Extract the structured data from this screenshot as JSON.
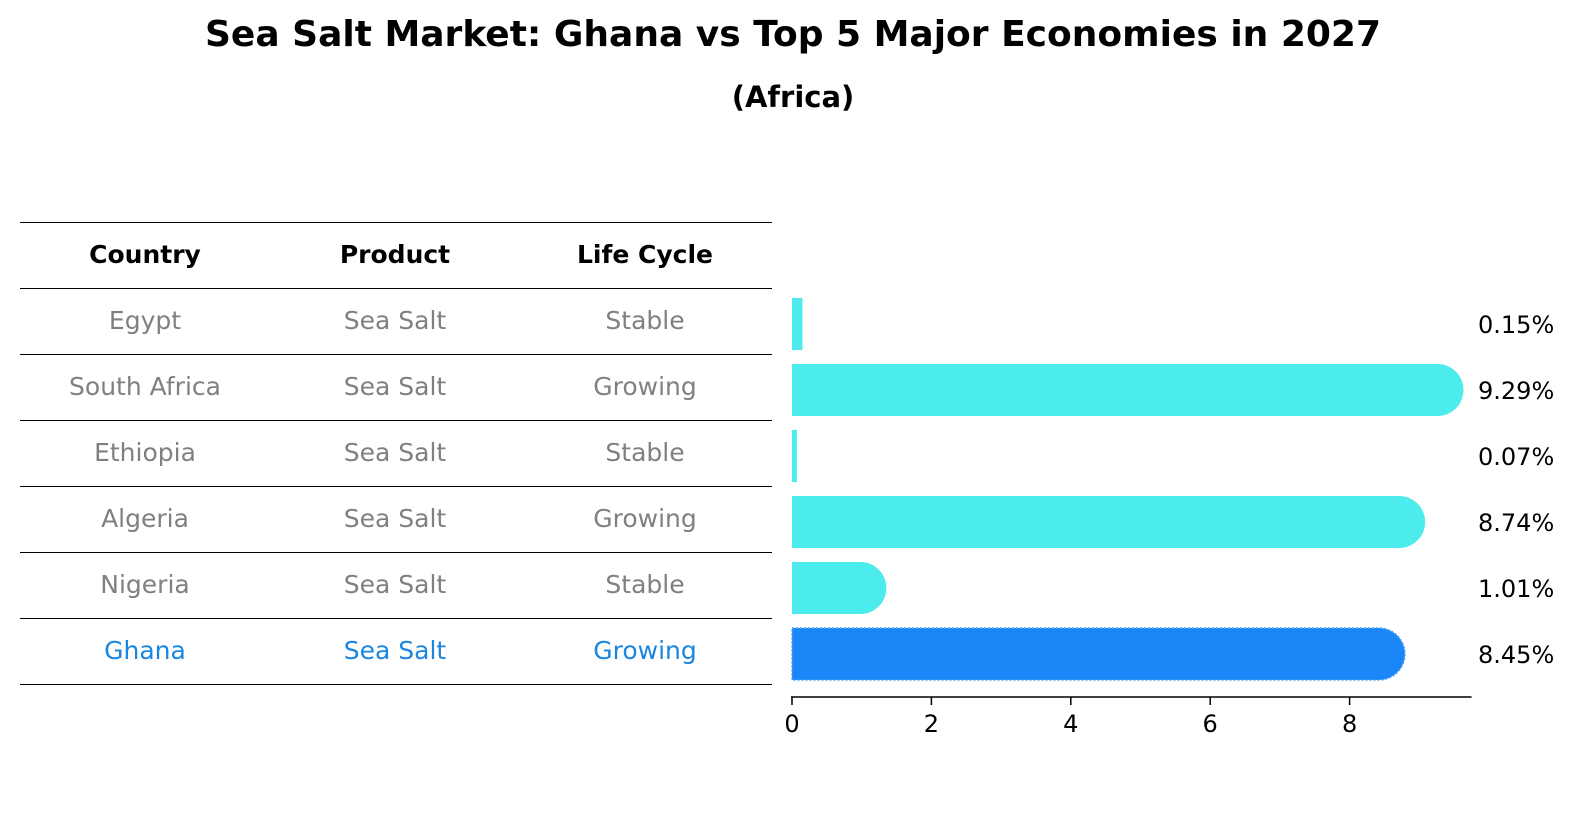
{
  "title": "Sea Salt Market: Ghana vs Top 5 Major Economies in 2027",
  "subtitle": "(Africa)",
  "table": {
    "headers": [
      "Country",
      "Product",
      "Life Cycle"
    ],
    "rows": [
      [
        "Egypt",
        "Sea Salt",
        "Stable"
      ],
      [
        "South Africa",
        "Sea Salt",
        "Growing"
      ],
      [
        "Ethiopia",
        "Sea Salt",
        "Stable"
      ],
      [
        "Algeria",
        "Sea Salt",
        "Growing"
      ],
      [
        "Nigeria",
        "Sea Salt",
        "Stable"
      ],
      [
        "Ghana",
        "Sea Salt",
        "Growing"
      ]
    ],
    "highlight_row": 5
  },
  "colors": {
    "bar": "#4beceb",
    "highlight_bar": "#1b86f7",
    "highlight_text": "#1b86e0",
    "row_text": "#808080"
  },
  "chart_data": {
    "type": "bar",
    "orientation": "horizontal",
    "categories": [
      "Egypt",
      "South Africa",
      "Ethiopia",
      "Algeria",
      "Nigeria",
      "Ghana"
    ],
    "values": [
      0.15,
      9.29,
      0.07,
      8.74,
      1.01,
      8.45
    ],
    "value_labels": [
      "0.15%",
      "9.29%",
      "0.07%",
      "8.74%",
      "1.01%",
      "8.45%"
    ],
    "highlight": "Ghana",
    "xlim": [
      0,
      9.75
    ],
    "xticks": [
      0,
      2,
      4,
      6,
      8
    ],
    "xtick_labels": [
      "0",
      "2",
      "4",
      "6",
      "8"
    ],
    "grid": false
  }
}
